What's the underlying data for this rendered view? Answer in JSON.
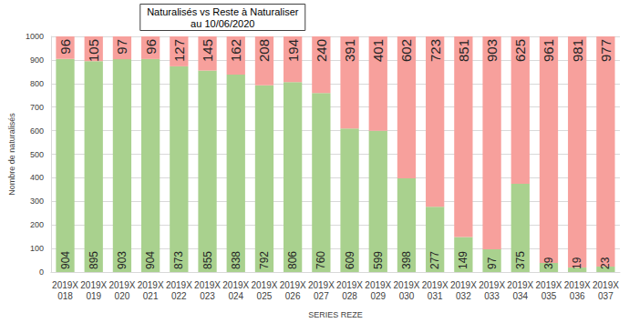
{
  "chart_data": {
    "type": "bar",
    "title": "Naturalisés vs Reste à Naturaliser",
    "subtitle": "au 10/06/2020",
    "x_label": "SERIES REZE",
    "y_label": "Nombre de naturalisés",
    "categories": [
      "2019X\n018",
      "2019X\n019",
      "2019X\n020",
      "2019X\n021",
      "2019X\n022",
      "2019X\n023",
      "2019X\n024",
      "2019X\n025",
      "2019X\n026",
      "2019X\n027",
      "2019X\n028",
      "2019X\n029",
      "2019X\n030",
      "2019X\n031",
      "2019X\n032",
      "2019X\n033",
      "2019X\n034",
      "2019X\n035",
      "2019X\n036",
      "2019X\n037"
    ],
    "series": [
      {
        "color": "#a9d18e",
        "values": [
          904,
          895,
          903,
          904,
          873,
          855,
          838,
          792,
          806,
          760,
          609,
          599,
          398,
          277,
          149,
          97,
          375,
          39,
          19,
          23
        ]
      },
      {
        "color": "#f7a09c",
        "values": [
          96,
          105,
          97,
          96,
          127,
          145,
          162,
          208,
          194,
          240,
          391,
          401,
          602,
          723,
          851,
          903,
          625,
          961,
          981,
          977
        ]
      }
    ],
    "stacked": true,
    "data_labels": true,
    "grid": true,
    "ylim": [
      0,
      1000
    ],
    "yticks": [
      0,
      100,
      200,
      300,
      400,
      500,
      600,
      700,
      800,
      900,
      1000
    ]
  }
}
